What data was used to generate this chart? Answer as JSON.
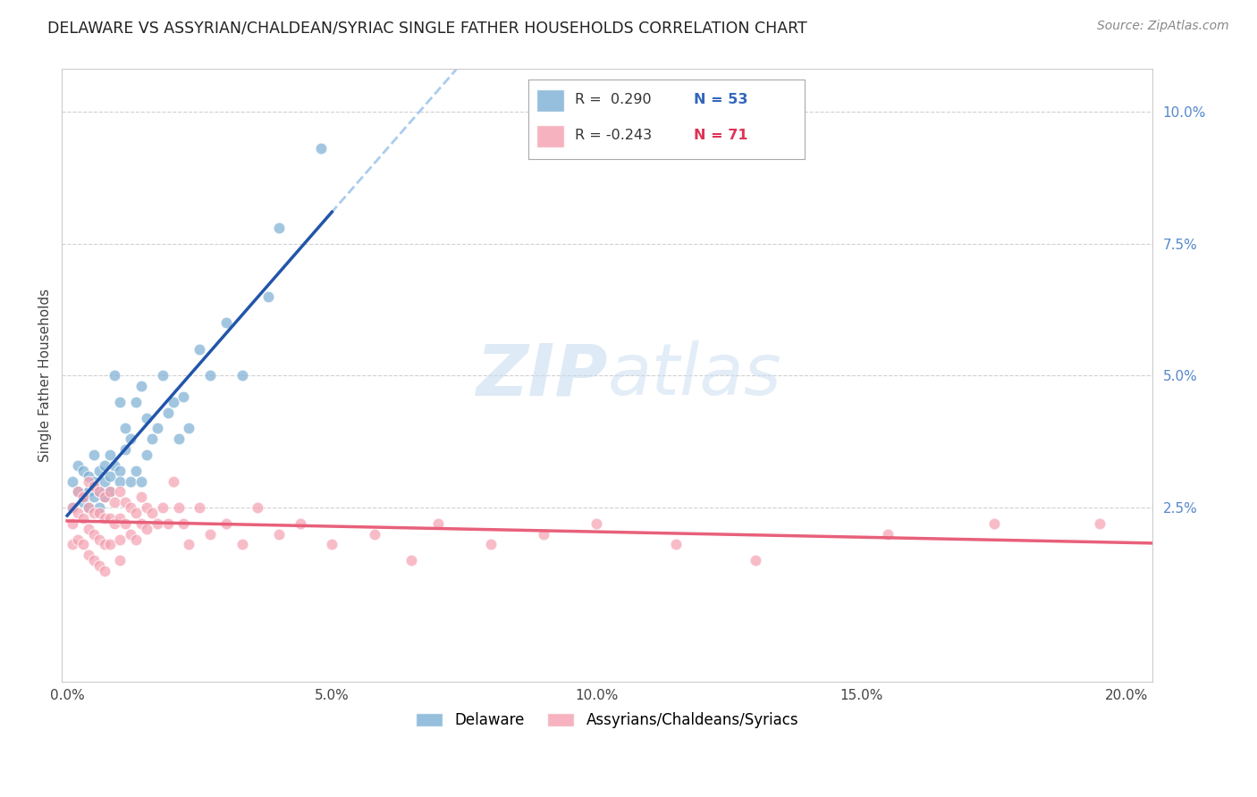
{
  "title": "DELAWARE VS ASSYRIAN/CHALDEAN/SYRIAC SINGLE FATHER HOUSEHOLDS CORRELATION CHART",
  "source": "Source: ZipAtlas.com",
  "ylabel": "Single Father Households",
  "y_tick_values": [
    0.025,
    0.05,
    0.075,
    0.1
  ],
  "x_tick_values": [
    0.0,
    0.05,
    0.1,
    0.15,
    0.2
  ],
  "xlim": [
    -0.001,
    0.205
  ],
  "ylim": [
    -0.008,
    0.108
  ],
  "legend_label1": "Delaware",
  "legend_label2": "Assyrians/Chaldeans/Syriacs",
  "blue_color": "#7BAFD4",
  "pink_color": "#F4A0B0",
  "blue_line_color": "#2255AA",
  "pink_line_color": "#E8607A",
  "dashed_line_color": "#AACCEE",
  "watermark_zip": "ZIP",
  "watermark_atlas": "atlas",
  "blue_scatter_x": [
    0.001,
    0.001,
    0.002,
    0.002,
    0.003,
    0.003,
    0.003,
    0.004,
    0.004,
    0.004,
    0.005,
    0.005,
    0.005,
    0.005,
    0.006,
    0.006,
    0.006,
    0.007,
    0.007,
    0.007,
    0.008,
    0.008,
    0.008,
    0.009,
    0.009,
    0.01,
    0.01,
    0.01,
    0.011,
    0.011,
    0.012,
    0.012,
    0.013,
    0.013,
    0.014,
    0.014,
    0.015,
    0.015,
    0.016,
    0.017,
    0.018,
    0.019,
    0.02,
    0.021,
    0.022,
    0.023,
    0.025,
    0.027,
    0.03,
    0.033,
    0.038,
    0.04,
    0.048
  ],
  "blue_scatter_y": [
    0.03,
    0.025,
    0.033,
    0.028,
    0.027,
    0.032,
    0.026,
    0.031,
    0.028,
    0.025,
    0.029,
    0.035,
    0.027,
    0.03,
    0.032,
    0.025,
    0.028,
    0.03,
    0.027,
    0.033,
    0.031,
    0.028,
    0.035,
    0.033,
    0.05,
    0.045,
    0.032,
    0.03,
    0.036,
    0.04,
    0.038,
    0.03,
    0.032,
    0.045,
    0.03,
    0.048,
    0.035,
    0.042,
    0.038,
    0.04,
    0.05,
    0.043,
    0.045,
    0.038,
    0.046,
    0.04,
    0.055,
    0.05,
    0.06,
    0.05,
    0.065,
    0.078,
    0.093
  ],
  "pink_scatter_x": [
    0.001,
    0.001,
    0.001,
    0.002,
    0.002,
    0.002,
    0.003,
    0.003,
    0.003,
    0.004,
    0.004,
    0.004,
    0.004,
    0.005,
    0.005,
    0.005,
    0.005,
    0.006,
    0.006,
    0.006,
    0.006,
    0.007,
    0.007,
    0.007,
    0.007,
    0.008,
    0.008,
    0.008,
    0.009,
    0.009,
    0.01,
    0.01,
    0.01,
    0.01,
    0.011,
    0.011,
    0.012,
    0.012,
    0.013,
    0.013,
    0.014,
    0.014,
    0.015,
    0.015,
    0.016,
    0.017,
    0.018,
    0.019,
    0.02,
    0.021,
    0.022,
    0.023,
    0.025,
    0.027,
    0.03,
    0.033,
    0.036,
    0.04,
    0.044,
    0.05,
    0.058,
    0.065,
    0.07,
    0.08,
    0.09,
    0.1,
    0.115,
    0.13,
    0.155,
    0.175,
    0.195
  ],
  "pink_scatter_y": [
    0.025,
    0.022,
    0.018,
    0.028,
    0.024,
    0.019,
    0.027,
    0.023,
    0.018,
    0.03,
    0.025,
    0.021,
    0.016,
    0.029,
    0.024,
    0.02,
    0.015,
    0.028,
    0.024,
    0.019,
    0.014,
    0.027,
    0.023,
    0.018,
    0.013,
    0.028,
    0.023,
    0.018,
    0.026,
    0.022,
    0.028,
    0.023,
    0.019,
    0.015,
    0.026,
    0.022,
    0.025,
    0.02,
    0.024,
    0.019,
    0.027,
    0.022,
    0.025,
    0.021,
    0.024,
    0.022,
    0.025,
    0.022,
    0.03,
    0.025,
    0.022,
    0.018,
    0.025,
    0.02,
    0.022,
    0.018,
    0.025,
    0.02,
    0.022,
    0.018,
    0.02,
    0.015,
    0.022,
    0.018,
    0.02,
    0.022,
    0.018,
    0.015,
    0.02,
    0.022,
    0.022
  ]
}
